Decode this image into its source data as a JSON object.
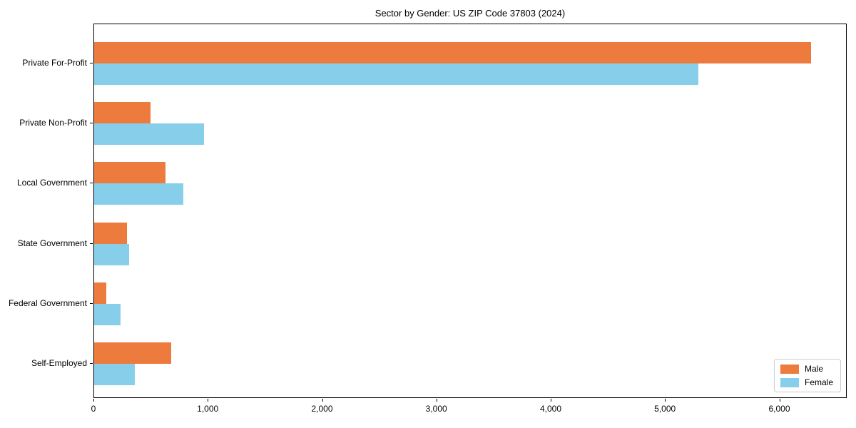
{
  "chart_data": {
    "type": "bar",
    "orientation": "horizontal",
    "title": "Sector by Gender: US ZIP Code 37803 (2024)",
    "categories": [
      "Private For-Profit",
      "Private Non-Profit",
      "Local Government",
      "State Government",
      "Federal Government",
      "Self-Employed"
    ],
    "series": [
      {
        "name": "Male",
        "color": "#EC7B3D",
        "values": [
          6274,
          493,
          624,
          287,
          106,
          674
        ]
      },
      {
        "name": "Female",
        "color": "#87CEEB",
        "values": [
          5288,
          961,
          780,
          306,
          231,
          356
        ]
      }
    ],
    "xlabel": "",
    "ylabel": "",
    "xlim": [
      0,
      6590
    ],
    "xticks": [
      0,
      1000,
      2000,
      3000,
      4000,
      5000,
      6000
    ],
    "xtick_labels": [
      "0",
      "1,000",
      "2,000",
      "3,000",
      "4,000",
      "5,000",
      "6,000"
    ],
    "legend_position": "lower right",
    "legend_entries": [
      "Male",
      "Female"
    ],
    "grid": false,
    "background_color": "#ffffff",
    "axis_color": "#000000"
  }
}
